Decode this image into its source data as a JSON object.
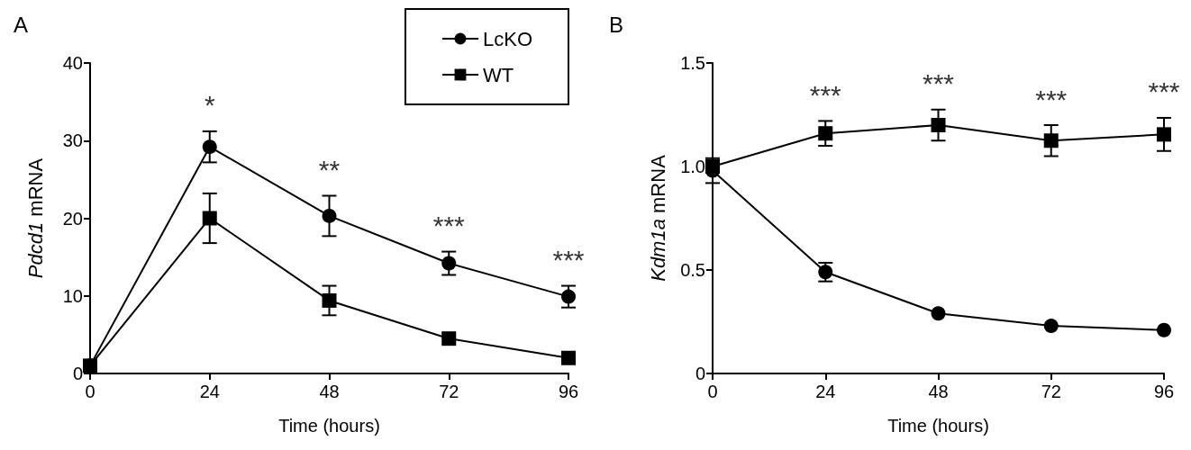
{
  "chart_data": [
    {
      "type": "line",
      "title": "A",
      "xlabel": "Time (hours)",
      "ylabel": "Pdcd1 mRNA",
      "x": [
        0,
        24,
        48,
        72,
        96
      ],
      "series": [
        {
          "name": "LcKO",
          "color": "#000000",
          "marker": "circle",
          "values": [
            1,
            29.2,
            20.3,
            14.2,
            9.9
          ],
          "errors": [
            null,
            2,
            2.6,
            1.5,
            1.4
          ]
        },
        {
          "name": "WT",
          "color": "#000000",
          "marker": "square",
          "values": [
            1,
            20,
            9.4,
            4.5,
            2.0
          ],
          "errors": [
            null,
            3.2,
            1.9,
            null,
            null
          ]
        }
      ],
      "xlim": [
        0,
        96
      ],
      "xticks": [
        0,
        24,
        48,
        72,
        96
      ],
      "ylim": [
        0,
        40
      ],
      "yticks": [
        0,
        10,
        20,
        30,
        40
      ],
      "grid": false,
      "legend": "top right",
      "annotations": [
        "*",
        "**",
        "***",
        "***"
      ]
    },
    {
      "type": "line",
      "title": "B",
      "xlabel": "Time (hours)",
      "ylabel": "Kdm1a mRNA",
      "x": [
        0,
        24,
        48,
        72,
        96
      ],
      "series": [
        {
          "color": "#000000",
          "marker": "circle",
          "values": [
            0.98,
            0.49,
            0.29,
            0.23,
            0.21
          ],
          "errors": [
            0.06,
            0.045,
            null,
            null,
            null
          ]
        },
        {
          "color": "#000000",
          "marker": "square",
          "values": [
            1.0,
            1.16,
            1.2,
            1.125,
            1.155
          ],
          "errors": [
            null,
            0.06,
            0.075,
            0.075,
            0.08
          ]
        }
      ],
      "xlim": [
        0,
        96
      ],
      "xticks": [
        0,
        24,
        48,
        72,
        96
      ],
      "ylim": [
        0,
        1.5
      ],
      "yticks": [
        0,
        0.5,
        {
          "value": 1,
          "label": "1.0"
        },
        1.5
      ],
      "grid": false,
      "legend": false,
      "annotations": [
        "***",
        "***",
        "***",
        "***"
      ]
    }
  ]
}
